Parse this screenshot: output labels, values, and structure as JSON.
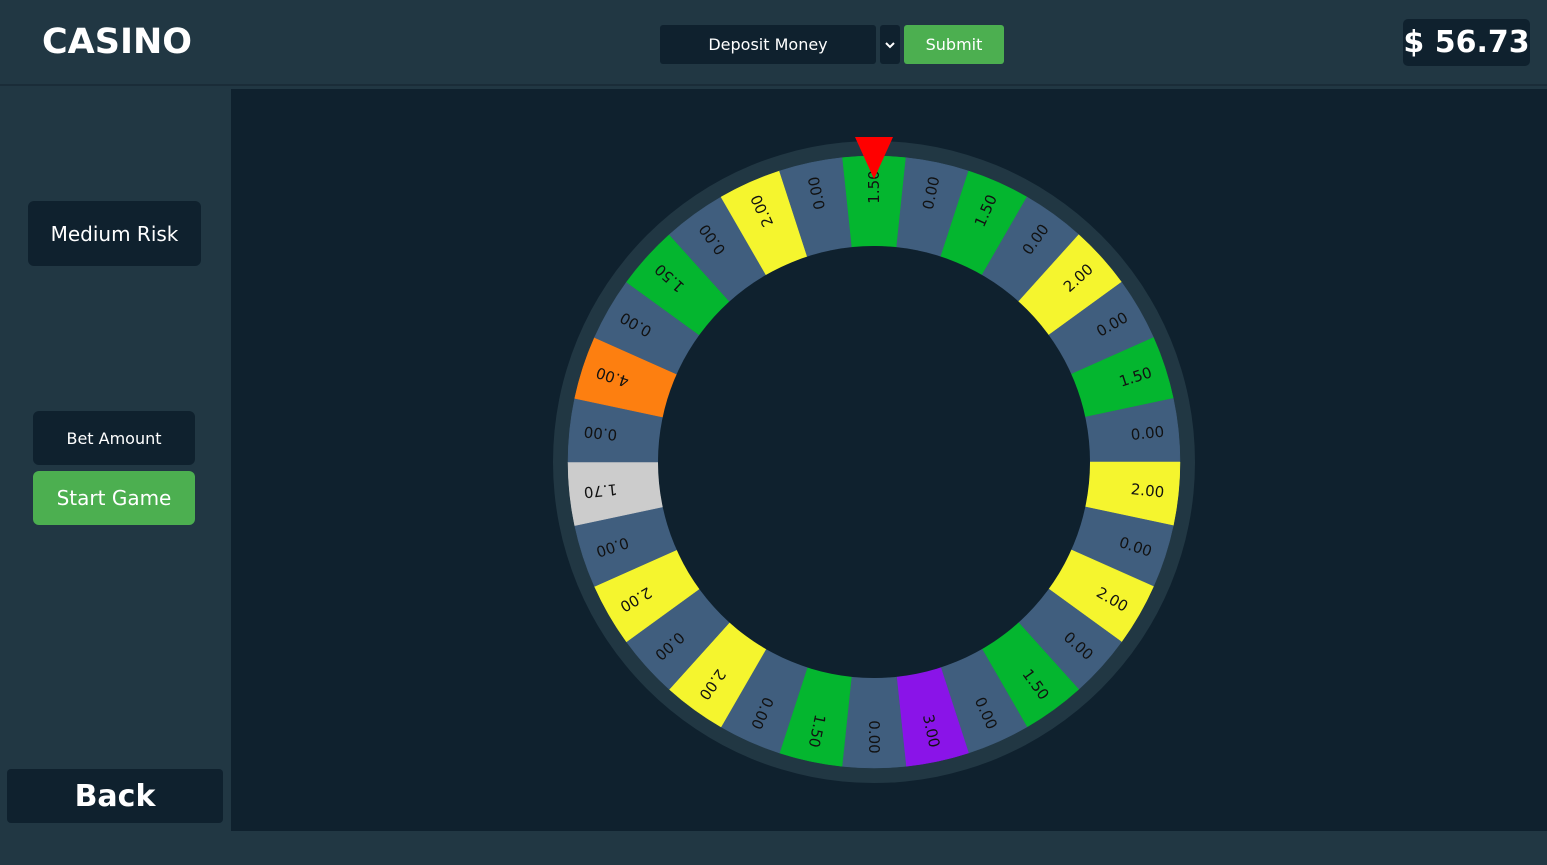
{
  "app": {
    "title": "CASINO"
  },
  "header": {
    "deposit_placeholder": "Deposit Money",
    "submit_label": "Submit",
    "balance": "$ 56.73"
  },
  "sidebar": {
    "risk_label": "Medium Risk",
    "bet_placeholder": "Bet Amount",
    "start_label": "Start Game",
    "back_label": "Back"
  },
  "wheel": {
    "pointer_color": "#ff0000",
    "segments": [
      {
        "label": "1.50",
        "color": "#04b62f"
      },
      {
        "label": "0.00",
        "color": "#405e7e"
      },
      {
        "label": "1.50",
        "color": "#04b62f"
      },
      {
        "label": "0.00",
        "color": "#405e7e"
      },
      {
        "label": "2.00",
        "color": "#f5f52e"
      },
      {
        "label": "0.00",
        "color": "#405e7e"
      },
      {
        "label": "1.50",
        "color": "#04b62f"
      },
      {
        "label": "0.00",
        "color": "#405e7e"
      },
      {
        "label": "2.00",
        "color": "#f5f52e"
      },
      {
        "label": "0.00",
        "color": "#405e7e"
      },
      {
        "label": "2.00",
        "color": "#f5f52e"
      },
      {
        "label": "0.00",
        "color": "#405e7e"
      },
      {
        "label": "1.50",
        "color": "#04b62f"
      },
      {
        "label": "0.00",
        "color": "#405e7e"
      },
      {
        "label": "3.00",
        "color": "#8a14e8"
      },
      {
        "label": "0.00",
        "color": "#405e7e"
      },
      {
        "label": "1.50",
        "color": "#04b62f"
      },
      {
        "label": "0.00",
        "color": "#405e7e"
      },
      {
        "label": "2.00",
        "color": "#f5f52e"
      },
      {
        "label": "0.00",
        "color": "#405e7e"
      },
      {
        "label": "2.00",
        "color": "#f5f52e"
      },
      {
        "label": "0.00",
        "color": "#405e7e"
      },
      {
        "label": "1.70",
        "color": "#cccccc"
      },
      {
        "label": "0.00",
        "color": "#405e7e"
      },
      {
        "label": "4.00",
        "color": "#fd7f10"
      },
      {
        "label": "0.00",
        "color": "#405e7e"
      },
      {
        "label": "1.50",
        "color": "#04b62f"
      },
      {
        "label": "0.00",
        "color": "#405e7e"
      },
      {
        "label": "2.00",
        "color": "#f5f52e"
      },
      {
        "label": "0.00",
        "color": "#405e7e"
      }
    ]
  }
}
